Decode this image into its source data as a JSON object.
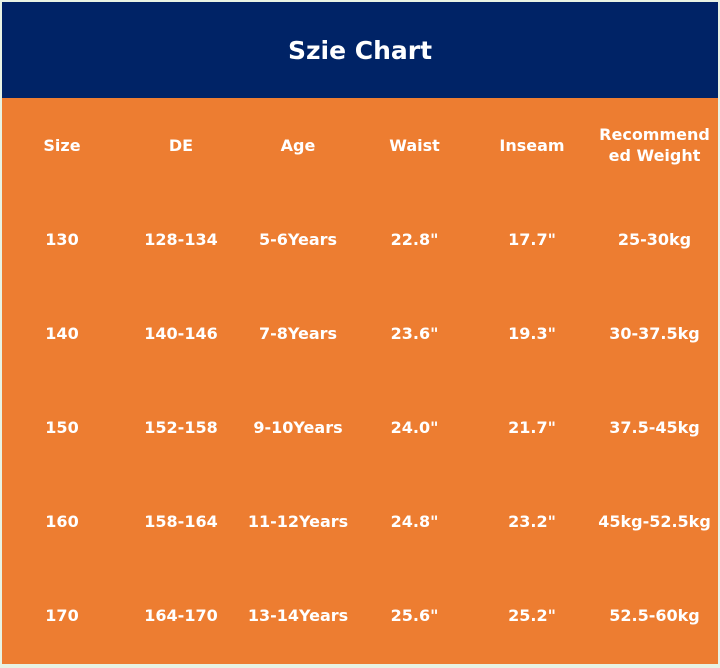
{
  "header": {
    "title": "Szie Chart"
  },
  "table": {
    "columns": [
      "Size",
      "DE",
      "Age",
      "Waist",
      "Inseam",
      "Recommended Weight"
    ],
    "rows": [
      [
        "130",
        "128-134",
        "5-6Years",
        "22.8\"",
        "17.7\"",
        "25-30kg"
      ],
      [
        "140",
        "140-146",
        "7-8Years",
        "23.6\"",
        "19.3\"",
        "30-37.5kg"
      ],
      [
        "150",
        "152-158",
        "9-10Years",
        "24.0\"",
        "21.7\"",
        "37.5-45kg"
      ],
      [
        "160",
        "158-164",
        "11-12Years",
        "24.8\"",
        "23.2\"",
        "45kg-52.5kg"
      ],
      [
        "170",
        "164-170",
        "13-14Years",
        "25.6\"",
        "25.2\"",
        "52.5-60kg"
      ]
    ]
  }
}
